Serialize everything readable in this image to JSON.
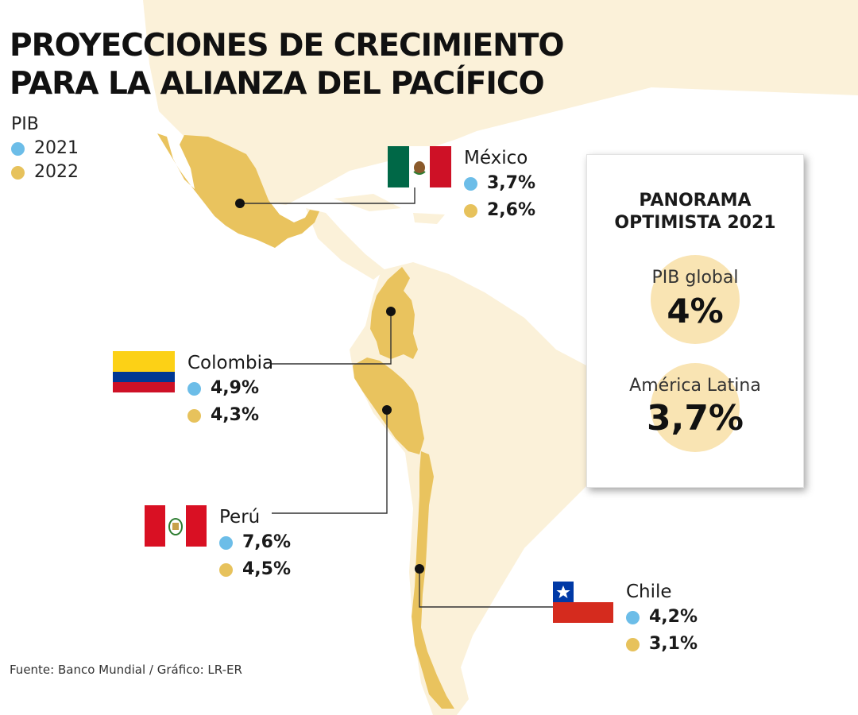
{
  "title": {
    "line1": "PROYECCIONES DE CRECIMIENTO",
    "line2": "PARA LA ALIANZA DEL PACÍFICO"
  },
  "legend": {
    "heading": "PIB",
    "year1": "2021",
    "year2": "2022"
  },
  "colors": {
    "dot_2021": "#6cbde8",
    "dot_2022": "#e7c25c",
    "land_highlight": "#e9c35e",
    "land_background": "#fbf1d9",
    "bubble": "#f9e4b3"
  },
  "countries": {
    "mexico": {
      "name": "México",
      "gdp_2021": "3,7%",
      "gdp_2022": "2,6%"
    },
    "colombia": {
      "name": "Colombia",
      "gdp_2021": "4,9%",
      "gdp_2022": "4,3%"
    },
    "peru": {
      "name": "Perú",
      "gdp_2021": "7,6%",
      "gdp_2022": "4,5%"
    },
    "chile": {
      "name": "Chile",
      "gdp_2021": "4,2%",
      "gdp_2022": "3,1%"
    }
  },
  "panel": {
    "title_line1": "PANORAMA",
    "title_line2": "OPTIMISTA 2021",
    "global_label": "PIB global",
    "global_value": "4%",
    "latam_label": "América Latina",
    "latam_value": "3,7%"
  },
  "source": "Fuente: Banco Mundial / Gráfico: LR-ER"
}
